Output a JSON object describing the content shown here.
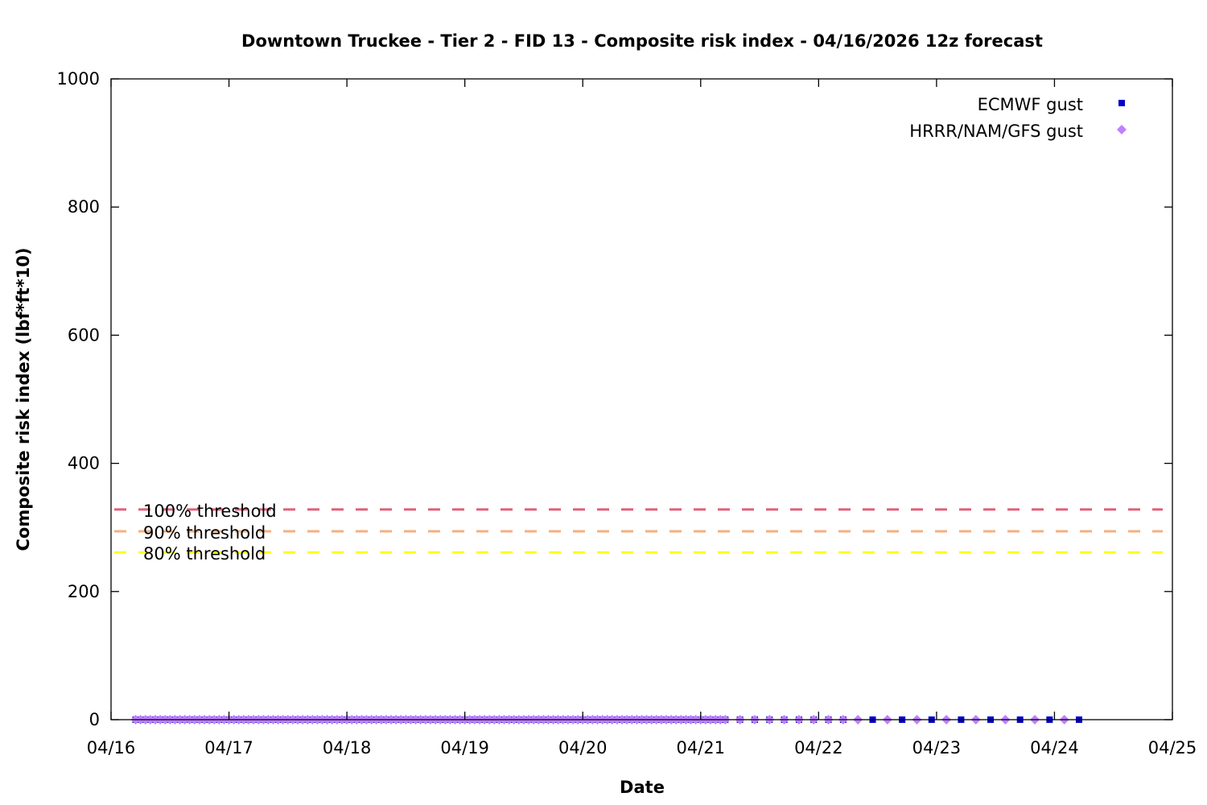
{
  "chart_data": {
    "type": "scatter",
    "title": "Downtown Truckee - Tier 2 - FID 13 - Composite risk index - 04/16/2026 12z forecast",
    "xlabel": "Date",
    "ylabel": "Composite risk index (lbf*ft*10)",
    "xlim": [
      "2026-04-16 00:00",
      "2026-04-25 00:00"
    ],
    "ylim": [
      0,
      1000
    ],
    "x_ticks": [
      "04/16",
      "04/17",
      "04/18",
      "04/19",
      "04/20",
      "04/21",
      "04/22",
      "04/23",
      "04/24",
      "04/25"
    ],
    "y_ticks": [
      "0",
      "200",
      "400",
      "600",
      "800",
      "1000"
    ],
    "y_tick_values": [
      0,
      200,
      400,
      600,
      800,
      1000
    ],
    "grid": false,
    "legend_position": "top-right",
    "thresholds": [
      {
        "label": "100% threshold",
        "value": 328,
        "color": "#e0607a"
      },
      {
        "label": "90% threshold",
        "value": 294,
        "color": "#f4b080"
      },
      {
        "label": "80% threshold",
        "value": 261,
        "color": "#ffff00"
      }
    ],
    "series": [
      {
        "name": "ECMWF gust",
        "marker": "square",
        "color": "#0000cc",
        "segments": [
          {
            "start": "2026-04-16 05:00",
            "end": "2026-04-21 05:00",
            "step_hours": 1,
            "value": 0
          },
          {
            "start": "2026-04-21 08:00",
            "end": "2026-04-22 05:00",
            "step_hours": 3,
            "value": 0
          },
          {
            "start": "2026-04-22 11:00",
            "end": "2026-04-24 05:00",
            "step_hours": 6,
            "value": 0
          }
        ]
      },
      {
        "name": "HRRR/NAM/GFS gust",
        "marker": "diamond",
        "color": "#bf80ff",
        "segments": [
          {
            "start": "2026-04-16 05:00",
            "end": "2026-04-21 05:00",
            "step_hours": 1,
            "value": 0
          },
          {
            "start": "2026-04-21 08:00",
            "end": "2026-04-22 05:00",
            "step_hours": 3,
            "value": 0
          },
          {
            "start": "2026-04-22 08:00",
            "end": "2026-04-24 02:00",
            "step_hours": 6,
            "value": 0
          }
        ]
      }
    ]
  }
}
